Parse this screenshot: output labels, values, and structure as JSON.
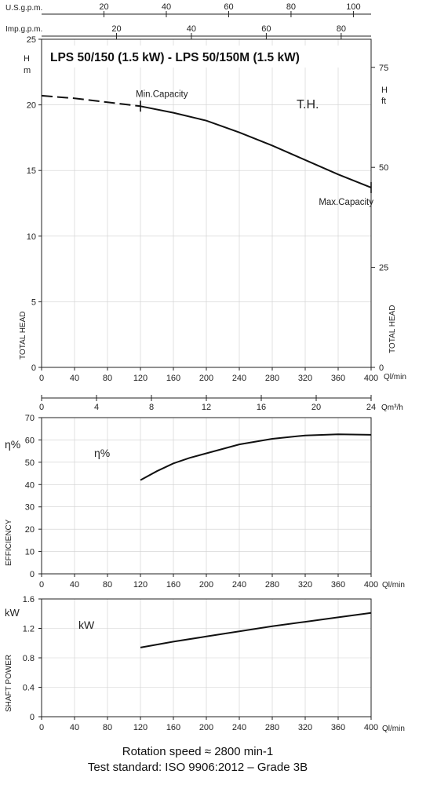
{
  "title": "LPS 50/150 (1.5 kW) - LPS 50/150M (1.5 kW)",
  "footer": {
    "line1": "Rotation speed ≈ 2800 min-1",
    "line2": "Test standard: ISO 9906:2012 – Grade 3B"
  },
  "chart_data": [
    {
      "type": "line",
      "id": "head",
      "ylabel": "TOTAL HEAD",
      "ylabel_right": "TOTAL HEAD",
      "y_unit_left": "H m",
      "y_unit_right": "H ft",
      "x_unit": "Ql/min",
      "xlim": [
        0,
        400
      ],
      "x_ticks": [
        0,
        40,
        80,
        120,
        160,
        200,
        240,
        280,
        320,
        360,
        400
      ],
      "ylim": [
        0,
        25
      ],
      "y_ticks": [
        0,
        5,
        10,
        15,
        20,
        25
      ],
      "y_right_ticks": [
        0,
        25,
        50,
        75
      ],
      "top_axis_usgpm": {
        "label": "U.S.g.p.m.",
        "ticks": [
          20,
          40,
          60,
          80,
          100
        ]
      },
      "top_axis_impgpm": {
        "label": "Imp.g.p.m.",
        "ticks": [
          20,
          40,
          60,
          80
        ]
      },
      "bottom_axis_m3h": {
        "label": "Qm³/h",
        "ticks": [
          0,
          4,
          8,
          12,
          16,
          20,
          24
        ]
      },
      "curve_label": "T.H.",
      "annotations": [
        {
          "text": "Min.Capacity",
          "x": 120,
          "y": 19.9
        },
        {
          "text": "Max.Capacity",
          "x": 400,
          "y": 13.7
        }
      ],
      "series_dashed": {
        "x": [
          0,
          20,
          40,
          60,
          80,
          100,
          120
        ],
        "y": [
          20.7,
          20.6,
          20.5,
          20.35,
          20.2,
          20.05,
          19.9
        ]
      },
      "series": {
        "x": [
          120,
          160,
          200,
          240,
          280,
          320,
          360,
          400
        ],
        "y": [
          19.9,
          19.4,
          18.8,
          17.9,
          16.9,
          15.8,
          14.7,
          13.7
        ]
      }
    },
    {
      "type": "line",
      "id": "efficiency",
      "ylabel": "EFFICIENCY",
      "y_unit": "η%",
      "curve_label": "η%",
      "x_unit": "Ql/min",
      "xlim": [
        0,
        400
      ],
      "x_ticks": [
        0,
        40,
        80,
        120,
        160,
        200,
        240,
        280,
        320,
        360,
        400
      ],
      "ylim": [
        0,
        70
      ],
      "y_ticks": [
        0,
        10,
        20,
        30,
        40,
        50,
        60,
        70
      ],
      "series": {
        "x": [
          120,
          140,
          160,
          180,
          200,
          240,
          280,
          320,
          360,
          400
        ],
        "y": [
          42,
          46,
          49.5,
          52,
          54,
          58,
          60.5,
          62,
          62.5,
          62.3
        ]
      }
    },
    {
      "type": "line",
      "id": "power",
      "ylabel": "SHAFT POWER",
      "y_unit": "kW",
      "curve_label": "kW",
      "x_unit": "Ql/min",
      "xlim": [
        0,
        400
      ],
      "x_ticks": [
        0,
        40,
        80,
        120,
        160,
        200,
        240,
        280,
        320,
        360,
        400
      ],
      "ylim": [
        0,
        1.6
      ],
      "y_ticks": [
        0,
        0.4,
        0.8,
        1.2,
        1.6
      ],
      "series": {
        "x": [
          120,
          160,
          200,
          240,
          280,
          320,
          360,
          400
        ],
        "y": [
          0.94,
          1.02,
          1.09,
          1.16,
          1.23,
          1.29,
          1.35,
          1.41
        ]
      }
    }
  ]
}
